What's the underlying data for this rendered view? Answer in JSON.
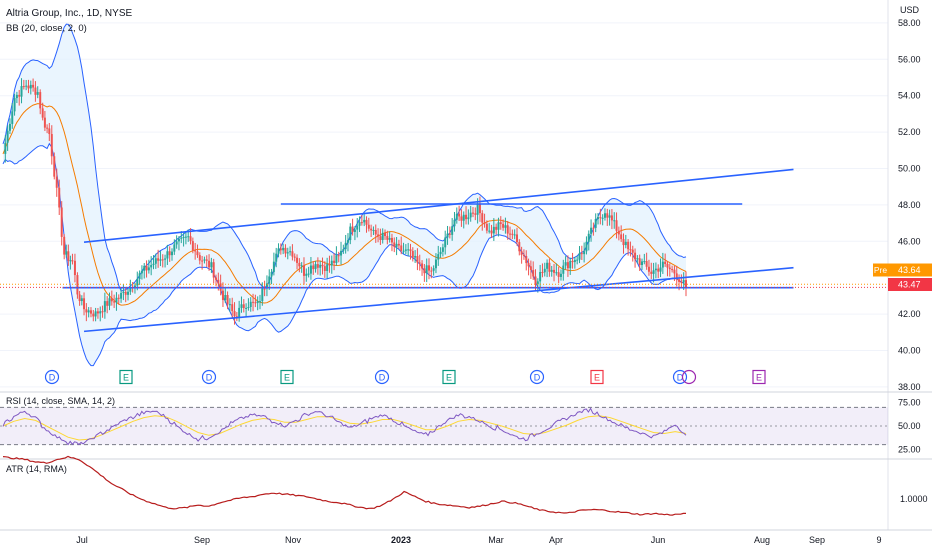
{
  "header": {
    "title": "Altria Group, Inc., 1D, NYSE",
    "bb_label": "BB (20, close, 2, 0)",
    "currency": "USD"
  },
  "price_axis": {
    "labels": [
      "58.00",
      "56.00",
      "54.00",
      "52.00",
      "50.00",
      "48.00",
      "46.00",
      "42.00",
      "40.00",
      "38.00"
    ],
    "pre_label": "Pre",
    "pre_value": "43.64",
    "last_value": "43.47"
  },
  "rsi": {
    "label": "RSI (14, close, SMA, 14, 2)",
    "axis_labels": [
      "75.00",
      "50.00",
      "25.00"
    ]
  },
  "atr": {
    "label": "ATR (14, RMA)",
    "axis_labels": [
      "1.0000"
    ]
  },
  "time_axis": {
    "labels": [
      "Jul",
      "Sep",
      "Nov",
      "2023",
      "Mar",
      "Apr",
      "Jun",
      "Aug",
      "Sep",
      "9"
    ]
  },
  "events": [
    "D",
    "E",
    "D",
    "E",
    "D",
    "E",
    "D",
    "E",
    "D",
    "E"
  ],
  "colors": {
    "up": "#26a69a",
    "down": "#ef5350",
    "bb_line": "#2962ff",
    "bb_fill": "#e3f2fd",
    "ma": "#f57c00",
    "rsi": "#7e57c2",
    "rsi_ma": "#fdd835",
    "atr": "#b71c1c",
    "trend": "#2962ff",
    "pre_badge": "#ff9800",
    "last_badge": "#f23645"
  },
  "chart_data": [
    {
      "type": "candlestick",
      "title": "Altria Group, Inc., 1D, NYSE",
      "ylim": [
        37.5,
        58.5
      ],
      "x_range": [
        "2022-05",
        "2023-09"
      ],
      "close_series": [
        {
          "date": "2022-05-10",
          "close": 50.8
        },
        {
          "date": "2022-05-17",
          "close": 53.9
        },
        {
          "date": "2022-05-24",
          "close": 54.6
        },
        {
          "date": "2022-05-31",
          "close": 54.2
        },
        {
          "date": "2022-06-03",
          "close": 52.7
        },
        {
          "date": "2022-06-07",
          "close": 51.9
        },
        {
          "date": "2022-06-10",
          "close": 49.8
        },
        {
          "date": "2022-06-13",
          "close": 47.6
        },
        {
          "date": "2022-06-16",
          "close": 45.3
        },
        {
          "date": "2022-06-21",
          "close": 44.9
        },
        {
          "date": "2022-06-24",
          "close": 43.2
        },
        {
          "date": "2022-06-28",
          "close": 42.3
        },
        {
          "date": "2022-07-05",
          "close": 42.0
        },
        {
          "date": "2022-07-12",
          "close": 42.6
        },
        {
          "date": "2022-07-19",
          "close": 42.9
        },
        {
          "date": "2022-07-26",
          "close": 43.5
        },
        {
          "date": "2022-08-02",
          "close": 44.3
        },
        {
          "date": "2022-08-09",
          "close": 44.8
        },
        {
          "date": "2022-08-16",
          "close": 45.2
        },
        {
          "date": "2022-08-23",
          "close": 45.8
        },
        {
          "date": "2022-08-30",
          "close": 46.2
        },
        {
          "date": "2022-09-06",
          "close": 45.1
        },
        {
          "date": "2022-09-13",
          "close": 44.6
        },
        {
          "date": "2022-09-20",
          "close": 43.0
        },
        {
          "date": "2022-09-27",
          "close": 41.9
        },
        {
          "date": "2022-10-04",
          "close": 42.6
        },
        {
          "date": "2022-10-11",
          "close": 42.5
        },
        {
          "date": "2022-10-18",
          "close": 44.3
        },
        {
          "date": "2022-10-25",
          "close": 45.7
        },
        {
          "date": "2022-11-01",
          "close": 45.4
        },
        {
          "date": "2022-11-08",
          "close": 44.3
        },
        {
          "date": "2022-11-15",
          "close": 44.8
        },
        {
          "date": "2022-11-22",
          "close": 44.6
        },
        {
          "date": "2022-11-29",
          "close": 45.1
        },
        {
          "date": "2022-12-06",
          "close": 46.6
        },
        {
          "date": "2022-12-13",
          "close": 47.3
        },
        {
          "date": "2022-12-20",
          "close": 46.4
        },
        {
          "date": "2022-12-27",
          "close": 46.2
        },
        {
          "date": "2023-01-03",
          "close": 45.6
        },
        {
          "date": "2023-01-10",
          "close": 45.4
        },
        {
          "date": "2023-01-17",
          "close": 44.6
        },
        {
          "date": "2023-01-24",
          "close": 44.3
        },
        {
          "date": "2023-01-31",
          "close": 45.7
        },
        {
          "date": "2023-02-07",
          "close": 47.2
        },
        {
          "date": "2023-02-14",
          "close": 47.4
        },
        {
          "date": "2023-02-21",
          "close": 47.8
        },
        {
          "date": "2023-02-28",
          "close": 46.5
        },
        {
          "date": "2023-03-07",
          "close": 46.9
        },
        {
          "date": "2023-03-14",
          "close": 46.4
        },
        {
          "date": "2023-03-21",
          "close": 45.2
        },
        {
          "date": "2023-03-28",
          "close": 43.9
        },
        {
          "date": "2023-04-04",
          "close": 44.6
        },
        {
          "date": "2023-04-11",
          "close": 44.3
        },
        {
          "date": "2023-04-18",
          "close": 44.9
        },
        {
          "date": "2023-04-25",
          "close": 45.3
        },
        {
          "date": "2023-05-02",
          "close": 46.8
        },
        {
          "date": "2023-05-09",
          "close": 47.7
        },
        {
          "date": "2023-05-16",
          "close": 46.7
        },
        {
          "date": "2023-05-23",
          "close": 45.5
        },
        {
          "date": "2023-05-30",
          "close": 44.9
        },
        {
          "date": "2023-06-06",
          "close": 44.3
        },
        {
          "date": "2023-06-13",
          "close": 44.7
        },
        {
          "date": "2023-06-20",
          "close": 44.3
        },
        {
          "date": "2023-06-27",
          "close": 43.47
        }
      ],
      "indicators": {
        "bollinger_bands": {
          "length": 20,
          "source": "close",
          "stddev": 2,
          "offset": 0
        },
        "trendlines": [
          {
            "from": {
              "date": "2022-06-28",
              "price": 45.95
            },
            "to": {
              "date": "2023-08-31",
              "price": 49.95
            }
          },
          {
            "from": {
              "date": "2022-06-28",
              "price": 41.05
            },
            "to": {
              "date": "2023-08-31",
              "price": 44.55
            }
          },
          {
            "from": {
              "date": "2022-10-25",
              "price": 48.05
            },
            "to": {
              "date": "2023-07-31",
              "price": 48.05
            }
          },
          {
            "from": {
              "date": "2022-06-15",
              "price": 43.45
            },
            "to": {
              "date": "2023-08-31",
              "price": 43.45
            }
          }
        ]
      },
      "last_close": 43.47,
      "premarket": 43.64
    },
    {
      "type": "line",
      "title": "RSI (14, close, SMA, 14, 2)",
      "ylim": [
        20,
        80
      ],
      "bands": [
        70,
        30
      ],
      "series": [
        {
          "values": [
            52,
            60,
            66,
            58,
            46,
            38,
            33,
            30,
            35,
            42,
            48,
            55,
            60,
            64,
            66,
            60,
            50,
            42,
            36,
            38,
            44,
            52,
            58,
            62,
            60,
            55,
            50,
            56,
            62,
            66,
            60,
            54,
            48,
            52,
            58,
            62,
            57,
            50,
            44,
            40,
            48,
            56,
            62,
            60,
            55,
            50,
            46,
            40,
            36,
            40,
            46,
            52,
            58,
            64,
            68,
            62,
            56,
            50,
            46,
            42,
            38,
            44,
            52,
            40
          ]
        },
        {
          "values": [
            50,
            55,
            58,
            56,
            50,
            44,
            38,
            35,
            36,
            40,
            45,
            50,
            55,
            59,
            61,
            60,
            55,
            49,
            43,
            40,
            42,
            47,
            52,
            56,
            58,
            57,
            54,
            54,
            57,
            60,
            60,
            57,
            53,
            52,
            54,
            57,
            57,
            54,
            50,
            46,
            46,
            50,
            55,
            57,
            56,
            53,
            50,
            46,
            42,
            41,
            43,
            47,
            51,
            56,
            60,
            61,
            59,
            55,
            51,
            47,
            43,
            42,
            44,
            42
          ]
        }
      ]
    },
    {
      "type": "line",
      "title": "ATR (14, RMA)",
      "series": [
        {
          "values": [
            1.35,
            1.34,
            1.33,
            1.31,
            1.3,
            1.33,
            1.35,
            1.33,
            1.27,
            1.2,
            1.13,
            1.08,
            1.03,
            0.99,
            0.96,
            0.93,
            0.92,
            0.93,
            0.95,
            0.94,
            0.97,
            0.99,
            1.01,
            1.02,
            1.04,
            1.05,
            1.04,
            1.03,
            1.02,
            1.0,
            0.98,
            0.97,
            0.95,
            0.93,
            0.92,
            0.95,
            1.0,
            1.06,
            1.02,
            0.98,
            0.96,
            0.95,
            0.94,
            0.93,
            0.94,
            0.96,
            0.98,
            0.97,
            0.95,
            0.92,
            0.9,
            0.89,
            0.88,
            0.9,
            0.91,
            0.91,
            0.9,
            0.89,
            0.88,
            0.87,
            0.88,
            0.87,
            0.87,
            0.88
          ]
        }
      ]
    }
  ]
}
